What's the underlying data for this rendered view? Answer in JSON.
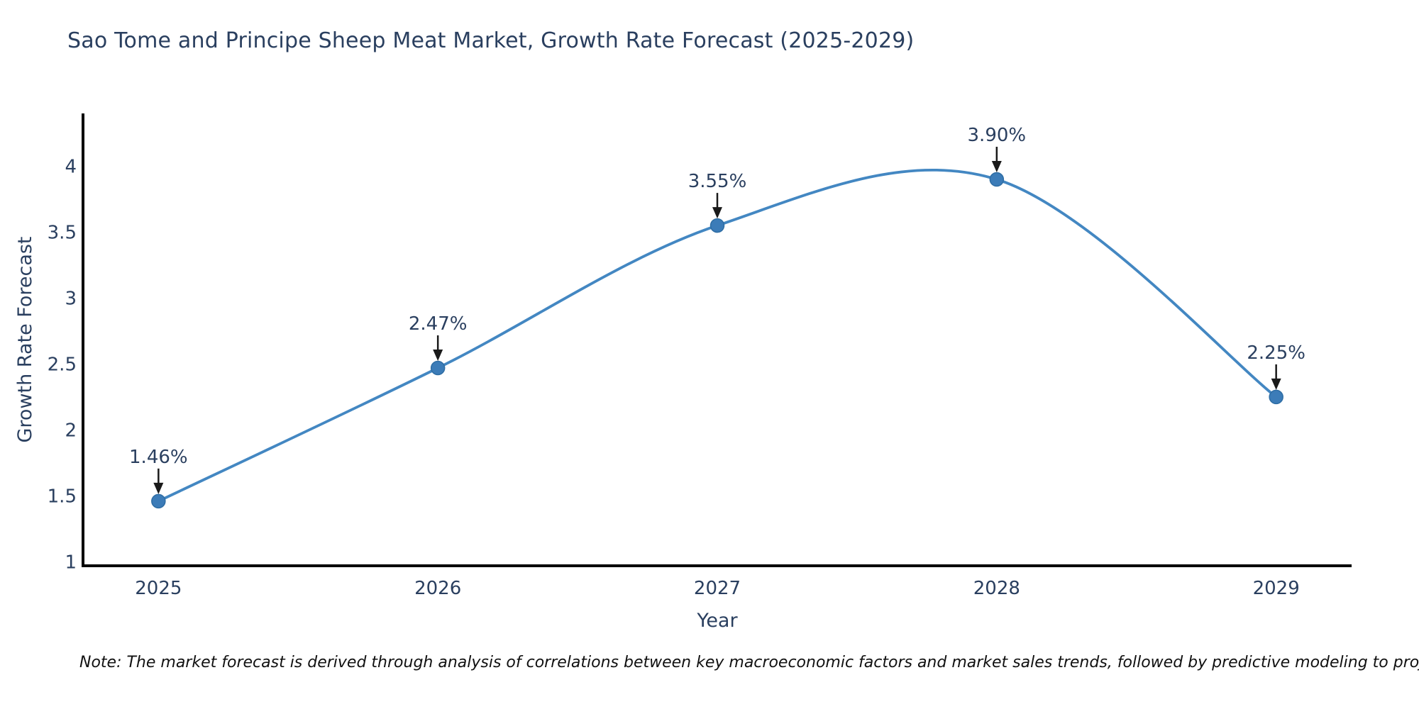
{
  "title": "Sao Tome and Principe Sheep Meat Market, Growth Rate Forecast (2025-2029)",
  "note": "Note: The market forecast is derived through analysis of correlations between key macroeconomic factors and market sales trends, followed by predictive modeling to project future sales",
  "chart_data": {
    "type": "line",
    "line_shape": "spline",
    "title": "Sao Tome and Principe Sheep Meat Market, Growth Rate Forecast (2025-2029)",
    "xlabel": "Year",
    "ylabel": "Growth Rate Forecast",
    "x": [
      2025,
      2026,
      2027,
      2028,
      2029
    ],
    "series": [
      {
        "name": "Growth Rate Forecast",
        "values": [
          1.46,
          2.47,
          3.55,
          3.9,
          2.25
        ],
        "point_labels": [
          "1.46%",
          "2.47%",
          "3.55%",
          "3.90%",
          "2.25%"
        ]
      }
    ],
    "xticks": [
      2025,
      2026,
      2027,
      2028,
      2029
    ],
    "yticks": [
      1,
      1.5,
      2,
      2.5,
      3,
      3.5,
      4
    ],
    "xlim": [
      2024.73,
      2029.27
    ],
    "ylim": [
      0.97,
      4.4
    ],
    "grid": false,
    "legend": "none",
    "annotations_arrow": "down",
    "colors": {
      "line": "#4387c2",
      "marker": "#3c7cb8",
      "marker_edge": "#2e6da4",
      "axis": "#000000",
      "text": "#2a3f5f",
      "annotation_arrow": "#1a1a1a",
      "background": "#ffffff"
    }
  }
}
